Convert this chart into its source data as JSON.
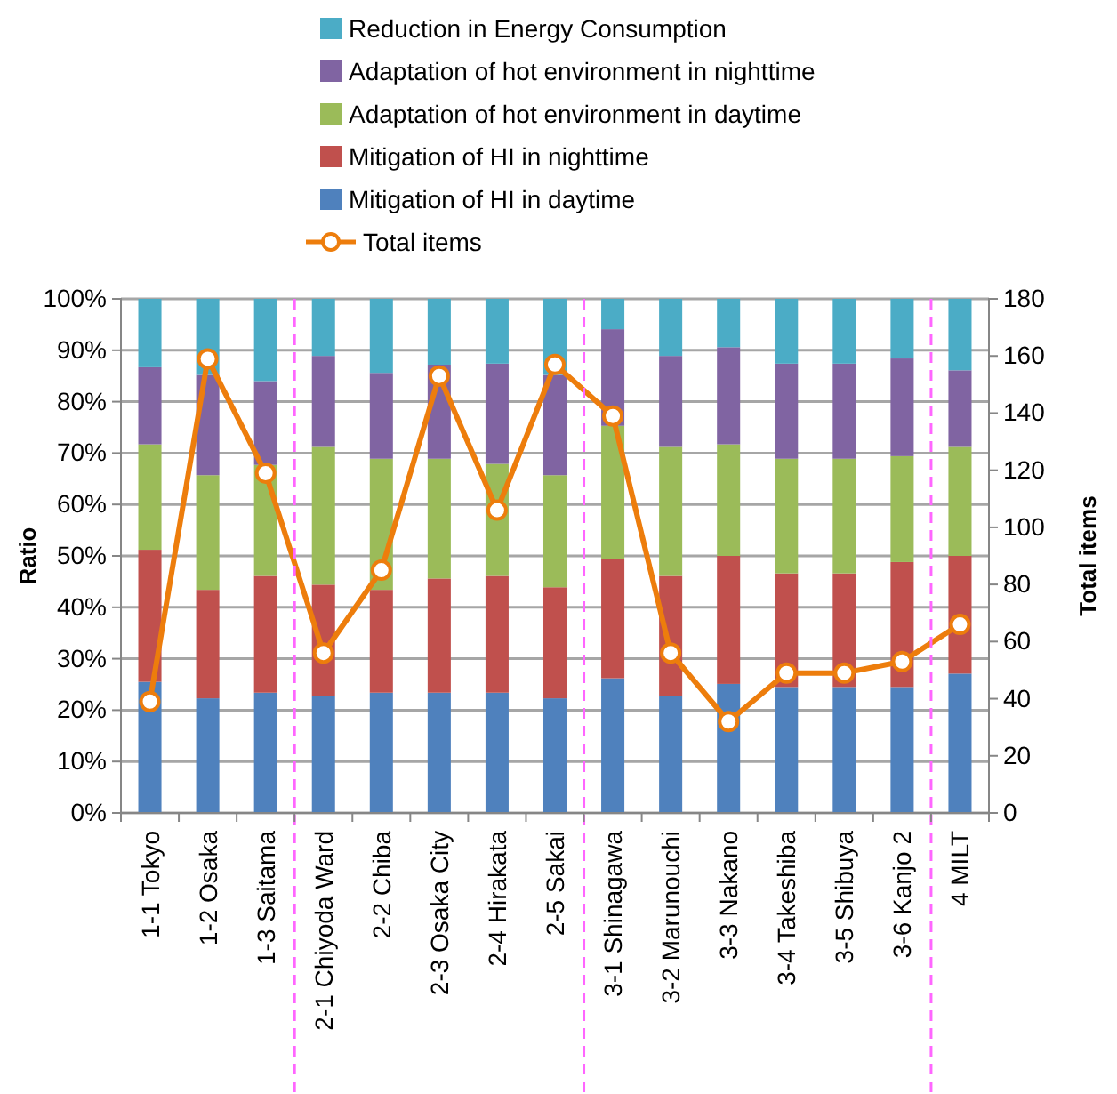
{
  "chart_data": {
    "type": "bar",
    "stacked": true,
    "ylabel": "Ratio",
    "y2label": "Total items",
    "categories": [
      "1-1 Tokyo",
      "1-2 Osaka",
      "1-3 Saitama",
      "2-1 Chiyoda Ward",
      "2-2 Chiba",
      "2-3 Osaka City",
      "2-4 Hirakata",
      "2-5 Sakai",
      "3-1 Shinagawa",
      "3-2 Marunouchi",
      "3-3 Nakano",
      "3-4 Takeshiba",
      "3-5 Shibuya",
      "3-6 Kanjo 2",
      "4 MILT"
    ],
    "series": [
      {
        "name": "Mitigation of HI in daytime",
        "color": "#4f81bd",
        "values": [
          25.5,
          22.3,
          23.4,
          22.7,
          23.4,
          23.4,
          23.4,
          22.3,
          26.2,
          22.7,
          25.1,
          24.5,
          24.5,
          24.5,
          27.1
        ]
      },
      {
        "name": "Mitigation of HI in nighttime",
        "color": "#c0504d",
        "values": [
          25.7,
          21.1,
          22.7,
          21.7,
          20,
          22.2,
          22.7,
          21.6,
          23.2,
          23.4,
          24.9,
          22.1,
          22.1,
          24.3,
          22.9
        ]
      },
      {
        "name": "Adaptation of hot environment in daytime",
        "color": "#9bbb59",
        "values": [
          20.5,
          22.3,
          21.6,
          26.8,
          25.5,
          23.3,
          21.8,
          21.8,
          25.9,
          25.1,
          21.7,
          22.3,
          22.3,
          20.6,
          21.2
        ]
      },
      {
        "name": "Adaptation of hot environment in nighttime",
        "color": "#8064a2",
        "values": [
          15,
          19.5,
          16.3,
          17.7,
          16.7,
          18.3,
          19.5,
          19.5,
          18.8,
          17.7,
          18.9,
          18.5,
          18.5,
          19,
          14.9
        ]
      },
      {
        "name": "Reduction in Energy Consumption",
        "color": "#4bacc6",
        "values": [
          13.3,
          14.8,
          16,
          11.1,
          14.4,
          12.8,
          12.6,
          14.8,
          5.9,
          11.1,
          9.4,
          12.6,
          12.6,
          11.6,
          13.9
        ]
      },
      {
        "name": "Total items",
        "type": "line",
        "axis": "y2",
        "color": "#ed7d0c",
        "marker": "circle",
        "line_style": "solid",
        "values": [
          39,
          159,
          119,
          56,
          85,
          153,
          106,
          157,
          139,
          56,
          32,
          49,
          49,
          53,
          66
        ]
      }
    ],
    "ylim": [
      0,
      100
    ],
    "yticks": [
      {
        "value": 0,
        "label": "0%"
      },
      {
        "value": 10,
        "label": "10%"
      },
      {
        "value": 20,
        "label": "20%"
      },
      {
        "value": 30,
        "label": "30%"
      },
      {
        "value": 40,
        "label": "40%"
      },
      {
        "value": 50,
        "label": "50%"
      },
      {
        "value": 60,
        "label": "60%"
      },
      {
        "value": 70,
        "label": "70%"
      },
      {
        "value": 80,
        "label": "80%"
      },
      {
        "value": 90,
        "label": "90%"
      },
      {
        "value": 100,
        "label": "100%"
      }
    ],
    "y2lim": [
      0,
      180
    ],
    "y2ticks": [
      0,
      20,
      40,
      60,
      80,
      100,
      120,
      140,
      160,
      180
    ],
    "grid": "y",
    "legend": "top"
  }
}
